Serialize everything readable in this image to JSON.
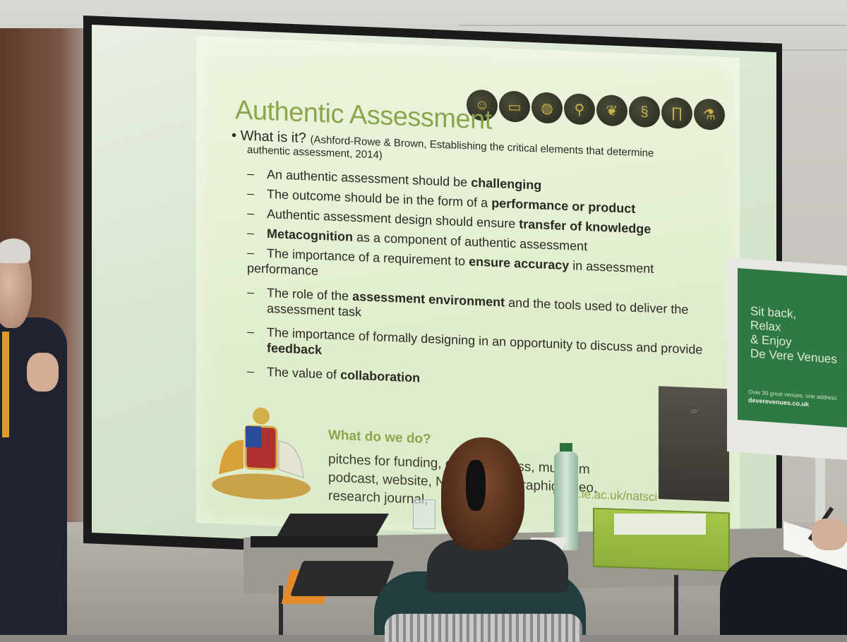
{
  "slide": {
    "title": "Authentic Assessment",
    "bullet_main": "What is it?",
    "bullet_ref": "(Ashford-Rowe & Brown, Establishing the critical elements that determine",
    "ref_line": "authentic assessment, 2014)",
    "sub_items": [
      {
        "pre": "An authentic assessment should be ",
        "bold": "challenging",
        "post": ""
      },
      {
        "pre": "The outcome should be in the form of a ",
        "bold": "performance or product",
        "post": ""
      },
      {
        "pre": "Authentic assessment design should ensure ",
        "bold": "transfer of knowledge",
        "post": ""
      },
      {
        "pre": "",
        "bold": "Metacognition",
        "post": " as a component of authentic assessment"
      },
      {
        "pre": "The importance of a requirement to ",
        "bold": "ensure accuracy",
        "post": " in assessment"
      },
      {
        "pre": "performance",
        "bold": "",
        "post": "",
        "continuation": true
      },
      {
        "pre": "The role of the ",
        "bold": "assessment environment",
        "post": " and the tools used to deliver the"
      },
      {
        "pre": "assessment task",
        "bold": "",
        "post": "",
        "continuation": true
      },
      {
        "pre": "The importance of formally designing in an opportunity to discuss and provide",
        "bold": "",
        "post": ""
      },
      {
        "pre": "",
        "bold": "feedback",
        "post": "",
        "continuation": true
      },
      {
        "pre": "The value of ",
        "bold": "collaboration",
        "post": ""
      }
    ],
    "what_we_do_heading": "What do we do?",
    "what_we_do_lines": [
      "pitches for funding, expert witness, museum",
      "podcast, website, National Geographic video,",
      "research journal,"
    ],
    "url": "www.le.ac.uk/natsci",
    "icons": [
      "scientist-icon",
      "computer-icon",
      "planet-icon",
      "microscope-icon",
      "leaf-icon",
      "dna-icon",
      "temple-icon",
      "flask-icon"
    ]
  },
  "flipchart": {
    "lines": [
      "Sit back,",
      "Relax",
      "& Enjoy",
      "De Vere Venues"
    ],
    "small_text": "Over 30 great venues, one address",
    "domain": "deverevenues.co.uk"
  },
  "colors": {
    "title_green": "#8aa64a",
    "slide_bg": "#e2efcf",
    "flipchart_green": "#2f7a44"
  }
}
